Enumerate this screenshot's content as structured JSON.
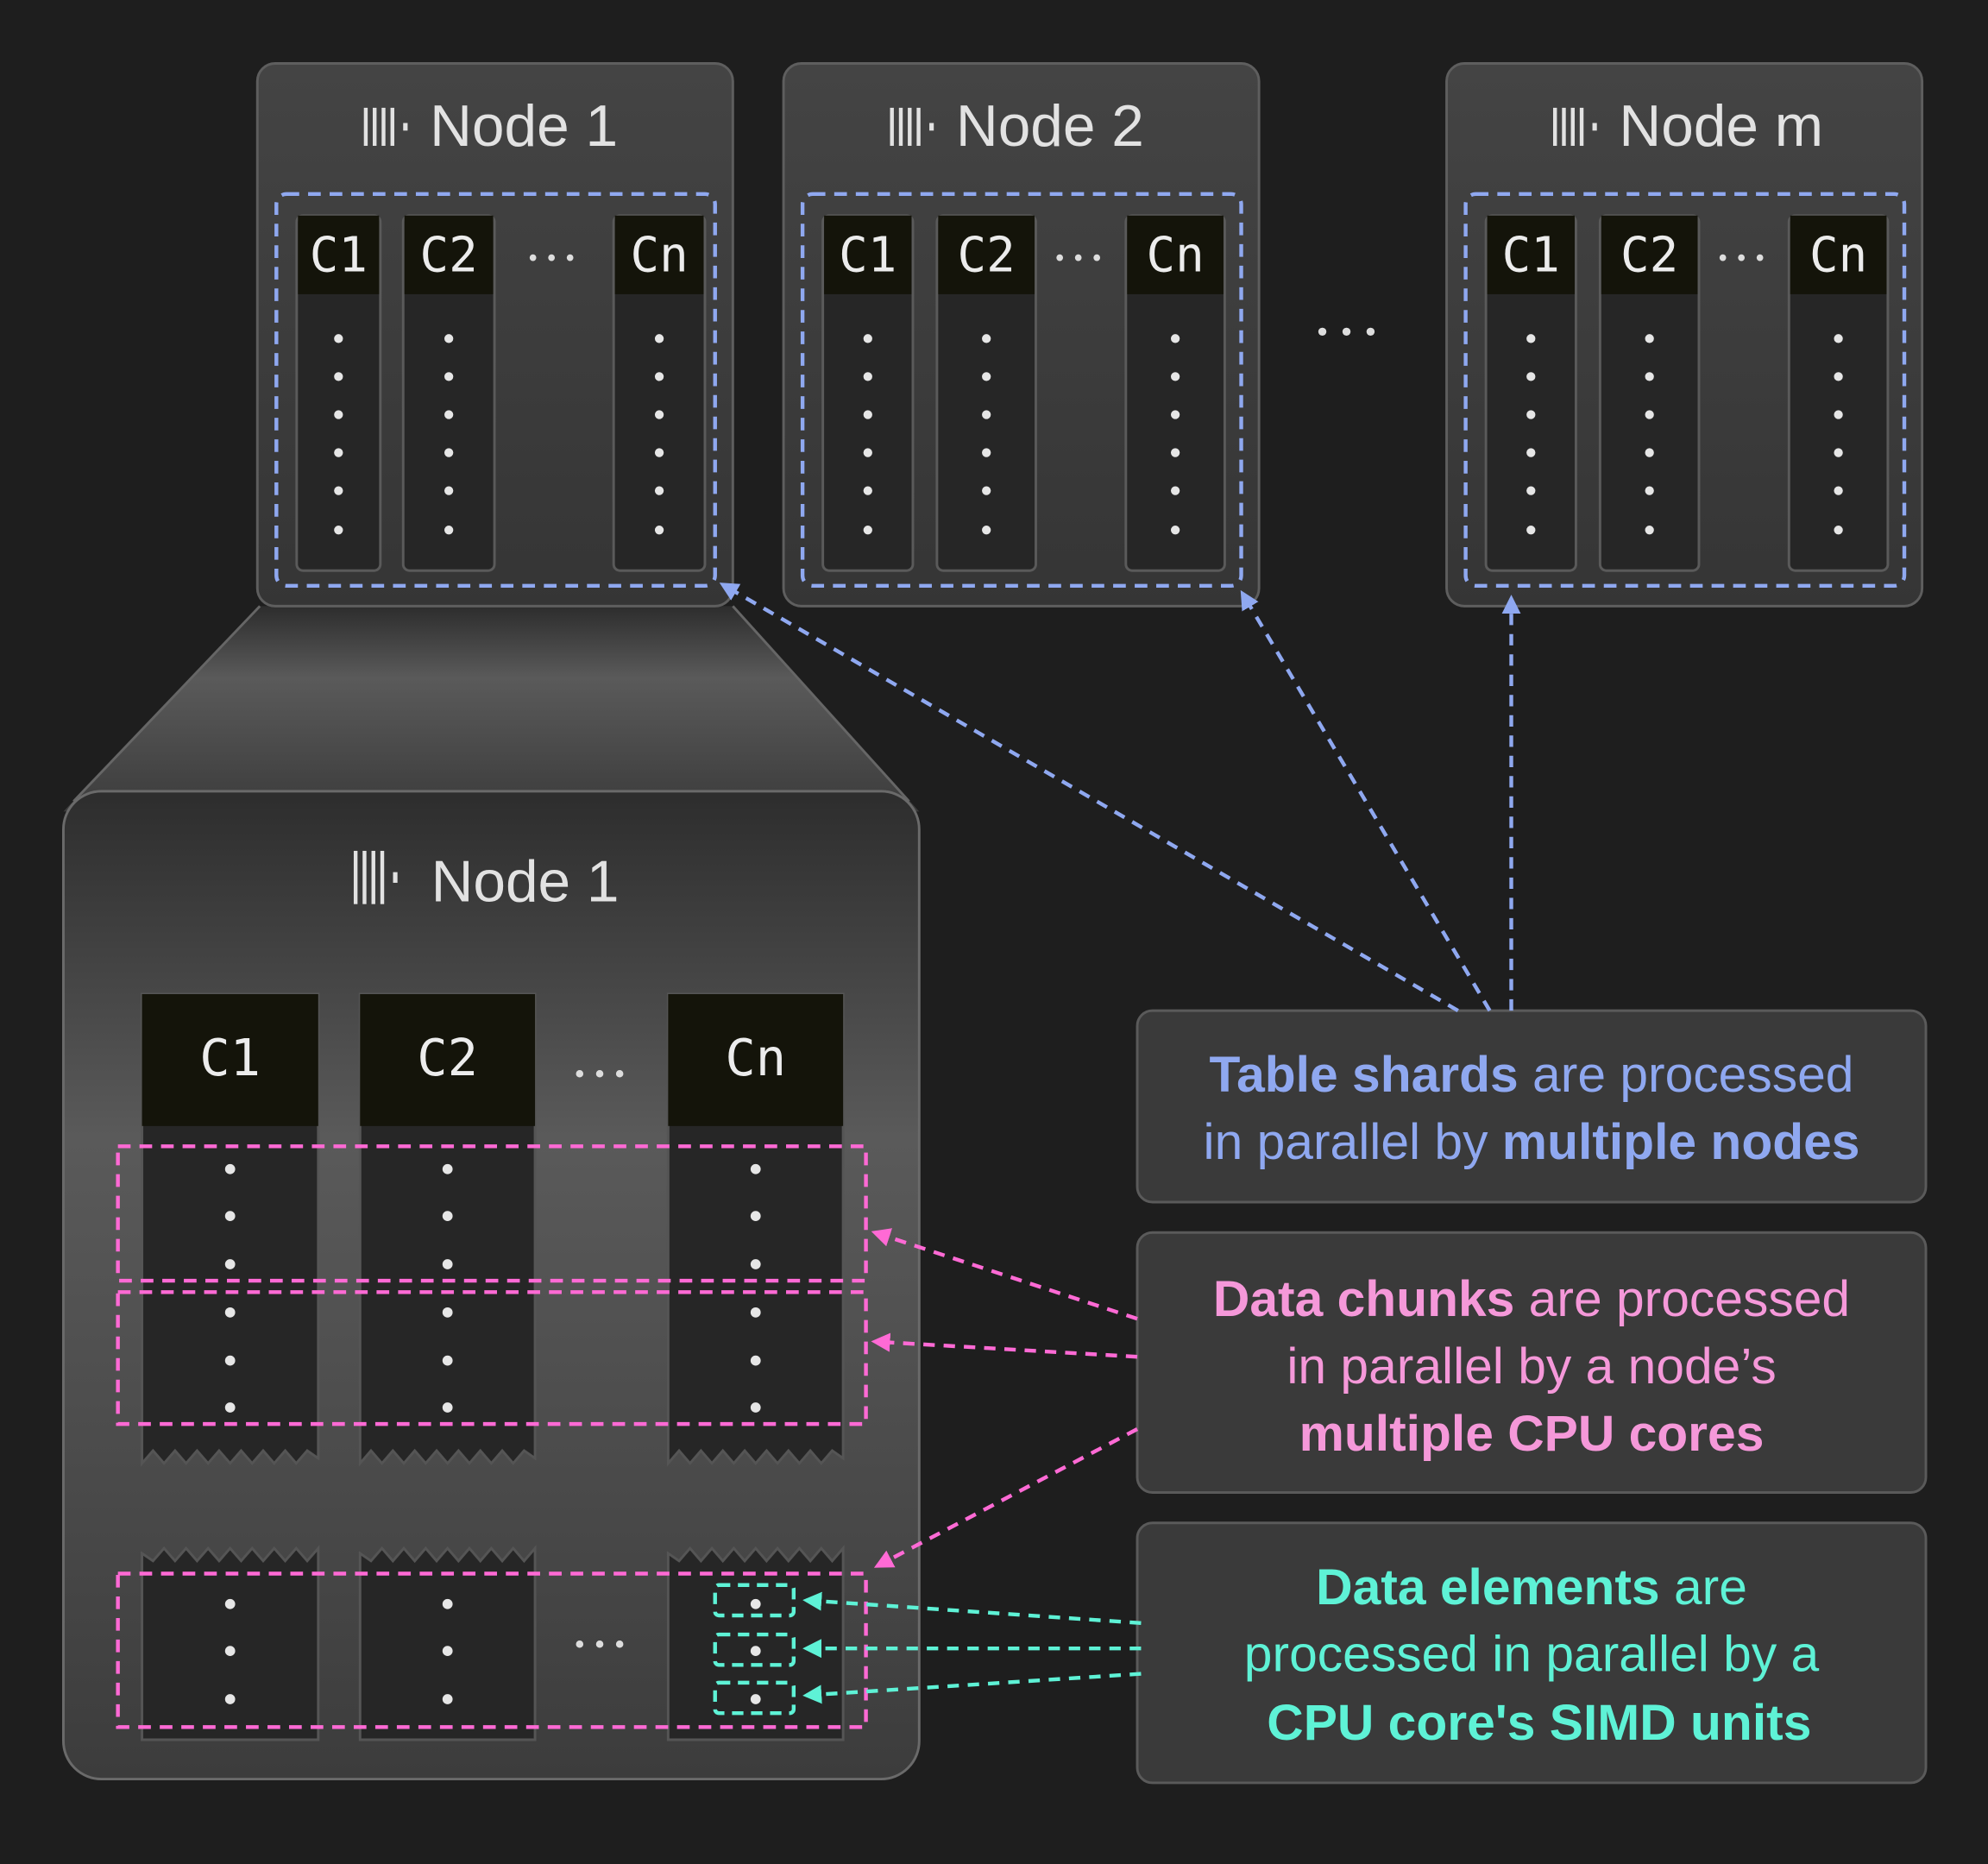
{
  "colors": {
    "background": "#1e1e1e",
    "blue": "#8fa8f0",
    "pink": "#ff6ad5",
    "pink_text": "#f598d9",
    "teal": "#5ef2d6"
  },
  "icons": {
    "node": "server-rack-icon",
    "ellipsis": "ellipsis-icon"
  },
  "nodes": [
    {
      "title": "Node 1",
      "columns": [
        "C1",
        "C2",
        "Cn"
      ]
    },
    {
      "title": "Node 2",
      "columns": [
        "C1",
        "C2",
        "Cn"
      ]
    },
    {
      "title": "Node m",
      "columns": [
        "C1",
        "C2",
        "Cn"
      ]
    }
  ],
  "zoomed_node": {
    "title": "Node 1",
    "columns": [
      "C1",
      "C2",
      "Cn"
    ]
  },
  "ellipsis": "•••",
  "captions": {
    "shards": {
      "bold1": "Table shards",
      "plain1": " are processed",
      "plain2": "in parallel by ",
      "bold2": "multiple nodes"
    },
    "chunks": {
      "bold1": "Data chunks",
      "plain1": " are processed",
      "plain2": "in parallel by a node’s",
      "bold2": "multiple CPU cores"
    },
    "elements": {
      "bold1": "Data elements",
      "plain1": " are",
      "plain2": "processed in parallel by a",
      "bold2": "CPU core's SIMD units"
    }
  }
}
